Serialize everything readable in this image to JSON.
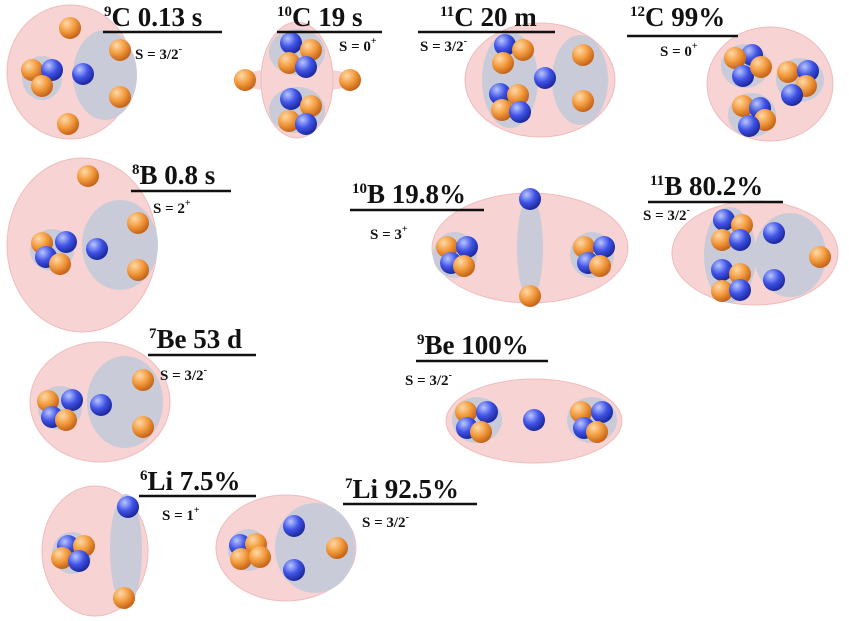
{
  "colors": {
    "halo": "#f7d3d3",
    "halo_edge": "#efbcbc",
    "cluster": "#c9cbd9",
    "proton_light": "#ffd9a8",
    "proton": "#f29a3c",
    "proton_dark": "#c5641a",
    "neutron_light": "#b9c6ff",
    "neutron": "#3f52e6",
    "neutron_dark": "#1d2a9c"
  },
  "nuclides": [
    {
      "id": "c9",
      "mass": "9",
      "element": "C",
      "value": "0.13 s",
      "spin": "3/2",
      "parity": "-"
    },
    {
      "id": "c10",
      "mass": "10",
      "element": "C",
      "value": "19 s",
      "spin": "0",
      "parity": "+"
    },
    {
      "id": "c11",
      "mass": "11",
      "element": "C",
      "value": "20 m",
      "spin": "3/2",
      "parity": "-"
    },
    {
      "id": "c12",
      "mass": "12",
      "element": "C",
      "value": "99%",
      "spin": "0",
      "parity": "+"
    },
    {
      "id": "b8",
      "mass": "8",
      "element": "B",
      "value": "0.8 s",
      "spin": "2",
      "parity": "+"
    },
    {
      "id": "b10",
      "mass": "10",
      "element": "B",
      "value": "19.8%",
      "spin": "3",
      "parity": "+"
    },
    {
      "id": "b11",
      "mass": "11",
      "element": "B",
      "value": "80.2%",
      "spin": "3/2",
      "parity": "-"
    },
    {
      "id": "be7",
      "mass": "7",
      "element": "Be",
      "value": "53 d",
      "spin": "3/2",
      "parity": "-"
    },
    {
      "id": "be9",
      "mass": "9",
      "element": "Be",
      "value": "100%",
      "spin": "3/2",
      "parity": "-"
    },
    {
      "id": "li6",
      "mass": "6",
      "element": "Li",
      "value": "7.5%",
      "spin": "1",
      "parity": "+"
    },
    {
      "id": "li7",
      "mass": "7",
      "element": "Li",
      "value": "92.5%",
      "spin": "3/2",
      "parity": "-"
    }
  ],
  "spin_prefix": "S = "
}
